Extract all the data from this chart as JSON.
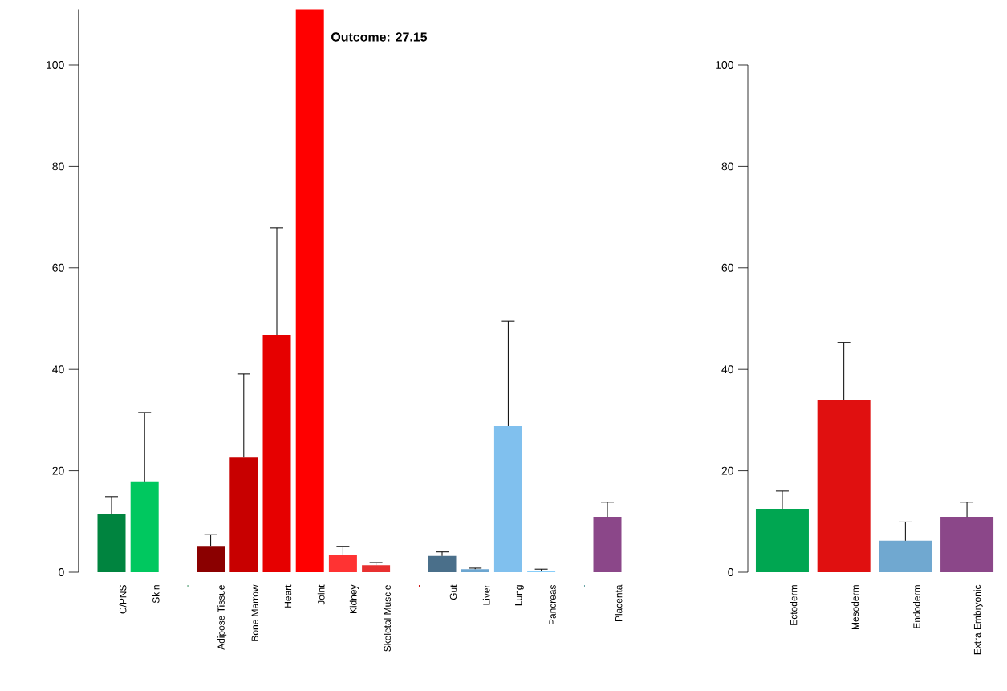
{
  "chart_data": [
    {
      "type": "bar",
      "title": "Outcome:  27.15",
      "categories": [
        "C/PNS",
        "Skin",
        "-",
        "Adipose Tissue",
        "Bone Marrow",
        "Heart",
        "Joint",
        "Kidney",
        "Skeletal Muscle",
        "-",
        "Gut",
        "Liver",
        "Lung",
        "Pancreas",
        "-",
        "Placenta"
      ],
      "values": [
        11.5,
        17.9,
        null,
        5.2,
        22.6,
        46.7,
        111,
        3.5,
        1.4,
        null,
        3.2,
        0.6,
        28.8,
        0.3,
        null,
        10.9
      ],
      "errors": [
        [
          11.5,
          14.9
        ],
        [
          17.9,
          31.5
        ],
        null,
        [
          5.2,
          7.4
        ],
        [
          22.6,
          39.1
        ],
        [
          46.7,
          67.9
        ],
        null,
        [
          3.5,
          5.1
        ],
        [
          1.4,
          1.9
        ],
        null,
        [
          3.2,
          4.0
        ],
        [
          0.6,
          0.8
        ],
        [
          28.8,
          49.5
        ],
        [
          0.3,
          0.6
        ],
        null,
        [
          10.9,
          13.8
        ]
      ],
      "colors": [
        "#00843f",
        "#00c85f",
        "#2e8b57",
        "#8b0000",
        "#c80000",
        "#e60000",
        "#ff0000",
        "#ff3333",
        "#e83030",
        "#cc0000",
        "#4a6f8a",
        "#6ca6d0",
        "#80c0ee",
        "#87cefa",
        "#5f9ea0",
        "#8b4789"
      ],
      "ylim": [
        0,
        111
      ],
      "yticks": [
        0,
        20,
        40,
        60,
        80,
        100
      ]
    },
    {
      "type": "bar",
      "categories": [
        "Ectoderm",
        "Mesoderm",
        "Endoderm",
        "Extra Embryonic"
      ],
      "values": [
        12.5,
        33.9,
        6.2,
        10.9
      ],
      "errors": [
        [
          12.5,
          16.0
        ],
        [
          33.9,
          45.3
        ],
        [
          6.2,
          9.9
        ],
        [
          10.9,
          13.8
        ]
      ],
      "colors": [
        "#00a651",
        "#e01010",
        "#70a8d0",
        "#8b4789"
      ],
      "ylim": [
        0,
        100
      ],
      "yticks": [
        0,
        20,
        40,
        60,
        80,
        100
      ]
    }
  ]
}
